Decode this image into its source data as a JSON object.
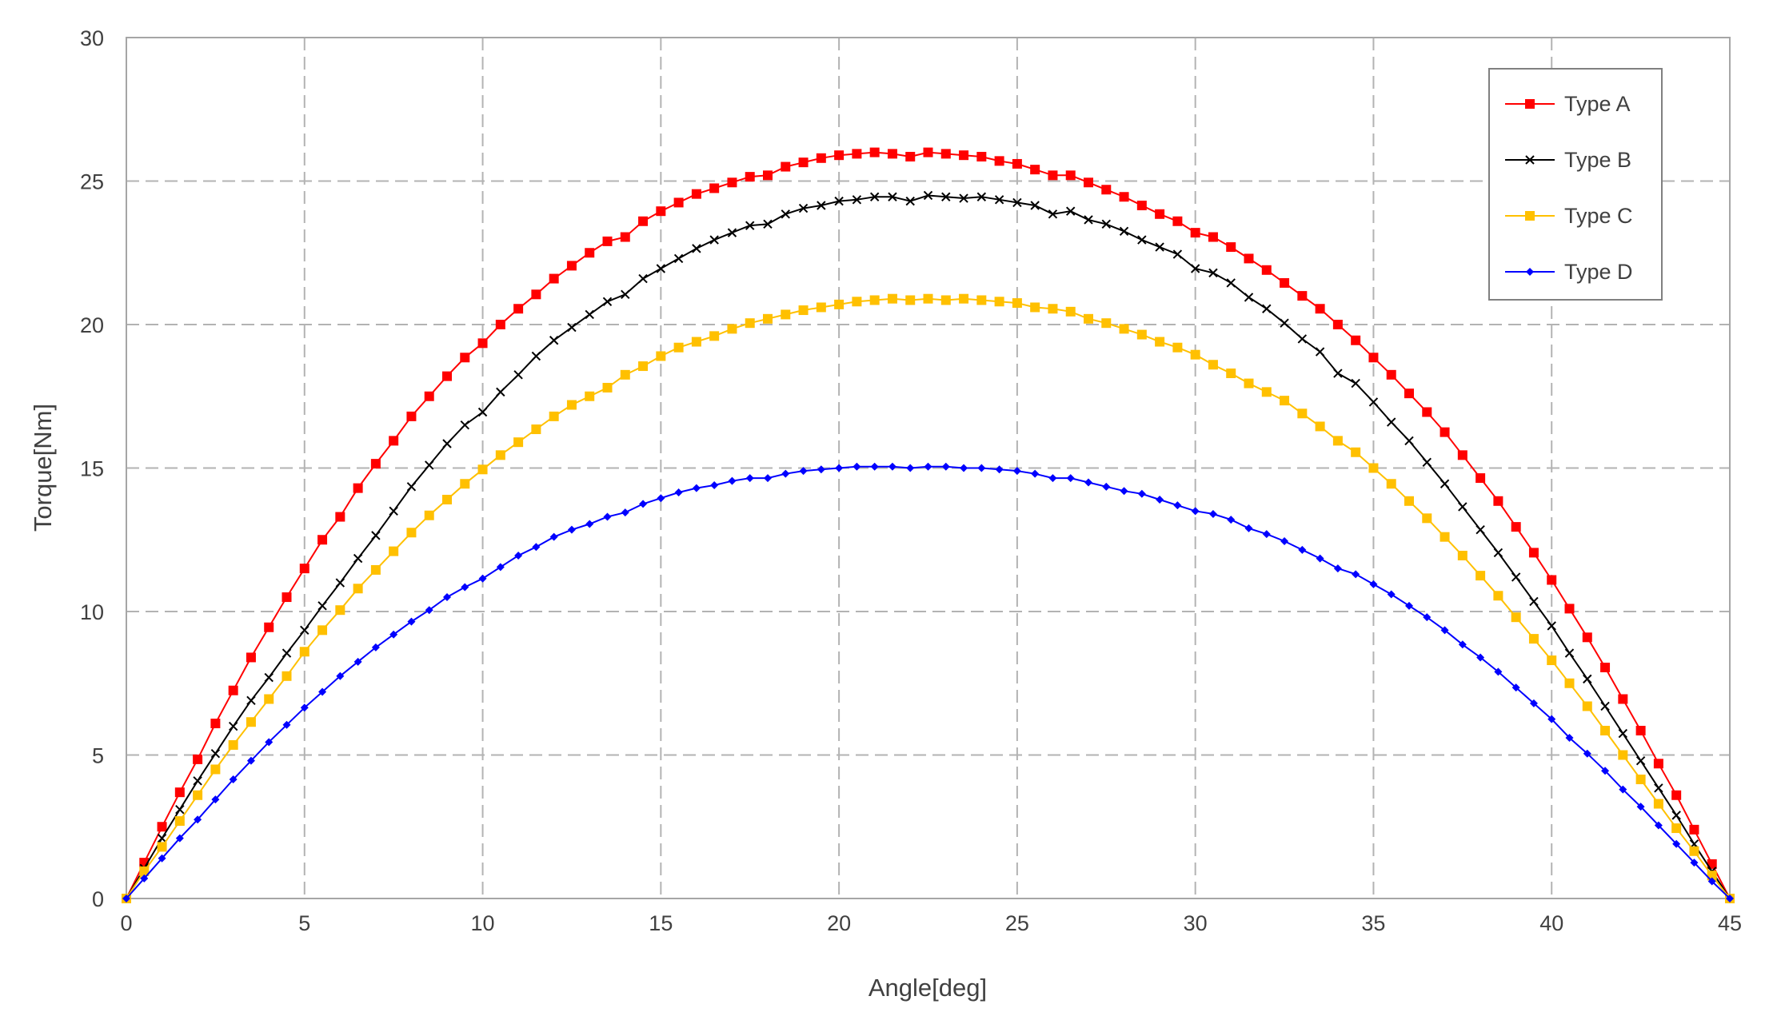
{
  "chart_data": {
    "type": "line",
    "title": "",
    "xlabel": "Angle[deg]",
    "ylabel": "Torque[Nm]",
    "xlim": [
      0,
      45
    ],
    "ylim": [
      0,
      30
    ],
    "xticks": [
      "0",
      "5",
      "10",
      "15",
      "20",
      "25",
      "30",
      "35",
      "40",
      "45"
    ],
    "yticks": [
      "0",
      "5",
      "10",
      "15",
      "20",
      "25",
      "30"
    ],
    "grid": true,
    "legend_position": "top-right",
    "x": [
      0,
      0.5,
      1,
      1.5,
      2,
      2.5,
      3,
      3.5,
      4,
      4.5,
      5,
      5.5,
      6,
      6.5,
      7,
      7.5,
      8,
      8.5,
      9,
      9.5,
      10,
      10.5,
      11,
      11.5,
      12,
      12.5,
      13,
      13.5,
      14,
      14.5,
      15,
      15.5,
      16,
      16.5,
      17,
      17.5,
      18,
      18.5,
      19,
      19.5,
      20,
      20.5,
      21,
      21.5,
      22,
      22.5,
      23,
      23.5,
      24,
      24.5,
      25,
      25.5,
      26,
      26.5,
      27,
      27.5,
      28,
      28.5,
      29,
      29.5,
      30,
      30.5,
      31,
      31.5,
      32,
      32.5,
      33,
      33.5,
      34,
      34.5,
      35,
      35.5,
      36,
      36.5,
      37,
      37.5,
      38,
      38.5,
      39,
      39.5,
      40,
      40.5,
      41,
      41.5,
      42,
      42.5,
      43,
      43.5,
      44,
      44.5,
      45
    ],
    "series": [
      {
        "name": "Type A",
        "color": "#ff0000",
        "marker": "square",
        "values": [
          0,
          1.25,
          2.5,
          3.7,
          4.85,
          6.1,
          7.25,
          8.4,
          9.45,
          10.5,
          11.5,
          12.5,
          13.3,
          14.3,
          15.15,
          15.95,
          16.8,
          17.5,
          18.2,
          18.85,
          19.35,
          20,
          20.55,
          21.05,
          21.6,
          22.05,
          22.5,
          22.9,
          23.05,
          23.6,
          23.95,
          24.25,
          24.55,
          24.75,
          24.95,
          25.15,
          25.2,
          25.5,
          25.65,
          25.8,
          25.9,
          25.95,
          26,
          25.95,
          25.85,
          26,
          25.95,
          25.9,
          25.85,
          25.7,
          25.6,
          25.4,
          25.2,
          25.2,
          24.95,
          24.7,
          24.45,
          24.15,
          23.85,
          23.6,
          23.2,
          23.05,
          22.7,
          22.3,
          21.9,
          21.45,
          21,
          20.55,
          20,
          19.45,
          18.85,
          18.25,
          17.6,
          16.95,
          16.25,
          15.45,
          14.65,
          13.85,
          12.95,
          12.05,
          11.1,
          10.1,
          9.1,
          8.05,
          6.95,
          5.85,
          4.7,
          3.6,
          2.4,
          1.2,
          0
        ]
      },
      {
        "name": "Type B",
        "color": "#000000",
        "marker": "x",
        "values": [
          0,
          1.05,
          2.1,
          3.1,
          4.1,
          5.05,
          6,
          6.9,
          7.7,
          8.55,
          9.35,
          10.2,
          11,
          11.85,
          12.65,
          13.5,
          14.35,
          15.1,
          15.85,
          16.5,
          16.95,
          17.65,
          18.25,
          18.9,
          19.45,
          19.9,
          20.35,
          20.8,
          21.05,
          21.6,
          21.95,
          22.3,
          22.65,
          22.95,
          23.2,
          23.45,
          23.5,
          23.85,
          24.05,
          24.15,
          24.3,
          24.35,
          24.45,
          24.45,
          24.3,
          24.5,
          24.45,
          24.4,
          24.45,
          24.35,
          24.25,
          24.15,
          23.85,
          23.95,
          23.65,
          23.5,
          23.25,
          22.95,
          22.7,
          22.45,
          21.95,
          21.8,
          21.45,
          20.95,
          20.55,
          20.05,
          19.5,
          19.05,
          18.3,
          17.95,
          17.3,
          16.6,
          15.95,
          15.2,
          14.45,
          13.65,
          12.85,
          12.05,
          11.2,
          10.35,
          9.5,
          8.55,
          7.65,
          6.7,
          5.75,
          4.8,
          3.85,
          2.9,
          1.9,
          0.95,
          0
        ]
      },
      {
        "name": "Type C",
        "color": "#ffc000",
        "marker": "square",
        "values": [
          0,
          0.95,
          1.8,
          2.7,
          3.6,
          4.5,
          5.35,
          6.15,
          6.95,
          7.75,
          8.6,
          9.35,
          10.05,
          10.8,
          11.45,
          12.1,
          12.75,
          13.35,
          13.9,
          14.45,
          14.95,
          15.45,
          15.9,
          16.35,
          16.8,
          17.2,
          17.5,
          17.8,
          18.25,
          18.55,
          18.9,
          19.2,
          19.4,
          19.6,
          19.85,
          20.05,
          20.2,
          20.35,
          20.5,
          20.6,
          20.7,
          20.8,
          20.85,
          20.9,
          20.85,
          20.9,
          20.85,
          20.9,
          20.85,
          20.8,
          20.75,
          20.6,
          20.55,
          20.45,
          20.2,
          20.05,
          19.85,
          19.65,
          19.4,
          19.2,
          18.95,
          18.6,
          18.3,
          17.95,
          17.65,
          17.35,
          16.9,
          16.45,
          15.95,
          15.55,
          15,
          14.45,
          13.85,
          13.25,
          12.6,
          11.95,
          11.25,
          10.55,
          9.8,
          9.05,
          8.3,
          7.5,
          6.7,
          5.85,
          5,
          4.15,
          3.3,
          2.45,
          1.65,
          0.8,
          0
        ]
      },
      {
        "name": "Type D",
        "color": "#0000ff",
        "marker": "diamond",
        "values": [
          0,
          0.7,
          1.4,
          2.1,
          2.75,
          3.45,
          4.15,
          4.8,
          5.45,
          6.05,
          6.65,
          7.2,
          7.75,
          8.25,
          8.75,
          9.2,
          9.65,
          10.05,
          10.5,
          10.85,
          11.15,
          11.55,
          11.95,
          12.25,
          12.6,
          12.85,
          13.05,
          13.3,
          13.45,
          13.75,
          13.95,
          14.15,
          14.3,
          14.4,
          14.55,
          14.65,
          14.65,
          14.8,
          14.9,
          14.95,
          15,
          15.05,
          15.05,
          15.05,
          15,
          15.05,
          15.05,
          15,
          15,
          14.95,
          14.9,
          14.8,
          14.65,
          14.65,
          14.5,
          14.35,
          14.2,
          14.1,
          13.9,
          13.7,
          13.5,
          13.4,
          13.2,
          12.9,
          12.7,
          12.45,
          12.15,
          11.85,
          11.5,
          11.3,
          10.95,
          10.6,
          10.2,
          9.8,
          9.35,
          8.85,
          8.4,
          7.9,
          7.35,
          6.8,
          6.25,
          5.6,
          5.05,
          4.45,
          3.8,
          3.2,
          2.55,
          1.9,
          1.25,
          0.6,
          0
        ]
      }
    ]
  }
}
